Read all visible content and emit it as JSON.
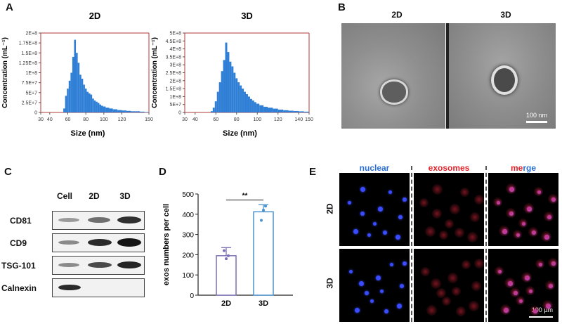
{
  "panels": {
    "A": "A",
    "B": "B",
    "C": "C",
    "D": "D",
    "E": "E"
  },
  "panelA": {
    "charts": [
      {
        "title": "2D",
        "ylabel": "Concentration (mL⁻¹)",
        "xlabel": "Size (nm)",
        "xticks": [
          "30",
          "40",
          "60",
          "80",
          "100",
          "120",
          "150"
        ],
        "yticks": [
          "0",
          "2.5E+7",
          "5E+7",
          "7.5E+7",
          "1E+8",
          "1.25E+8",
          "1.5E+8",
          "1.75E+8",
          "2E+8"
        ]
      },
      {
        "title": "3D",
        "ylabel": "Concentration (mL⁻¹)",
        "xlabel": "Size (nm)",
        "xticks": [
          "30",
          "40",
          "60",
          "80",
          "100",
          "120",
          "140",
          "150"
        ],
        "yticks": [
          "0",
          "5E+7",
          "1E+8",
          "1.5E+8",
          "2E+8",
          "2.5E+8",
          "3E+8",
          "3.5E+8",
          "4E+8",
          "4.5E+8",
          "5E+8"
        ]
      }
    ]
  },
  "chart_data": [
    {
      "type": "bar",
      "title": "2D",
      "xlabel": "Size (nm)",
      "ylabel": "Concentration (mL⁻¹)",
      "xlim": [
        30,
        150
      ],
      "ylim": [
        0,
        200000000
      ],
      "x": [
        55,
        57,
        59,
        61,
        63,
        65,
        67,
        69,
        71,
        73,
        75,
        77,
        79,
        81,
        83,
        85,
        87,
        89,
        91,
        93,
        95,
        97,
        99,
        102,
        106,
        110,
        115,
        120,
        125,
        130,
        135,
        140,
        145
      ],
      "values": [
        10000000,
        42000000,
        60000000,
        80000000,
        100000000,
        140000000,
        183000000,
        150000000,
        125000000,
        95000000,
        85000000,
        70000000,
        60000000,
        52000000,
        48000000,
        45000000,
        35000000,
        30000000,
        27000000,
        24000000,
        20000000,
        17000000,
        15000000,
        12000000,
        10000000,
        8000000,
        6000000,
        5000000,
        4000000,
        3000000,
        3000000,
        2000000,
        1000000
      ]
    },
    {
      "type": "bar",
      "title": "3D",
      "xlabel": "Size (nm)",
      "ylabel": "Concentration (mL⁻¹)",
      "xlim": [
        30,
        150
      ],
      "ylim": [
        0,
        500000000
      ],
      "x": [
        55,
        57,
        59,
        61,
        63,
        65,
        67,
        69,
        71,
        73,
        75,
        77,
        79,
        81,
        83,
        85,
        87,
        89,
        91,
        93,
        95,
        97,
        99,
        102,
        106,
        110,
        115,
        120,
        125,
        130,
        135,
        140,
        145
      ],
      "values": [
        8000000,
        30000000,
        70000000,
        130000000,
        190000000,
        260000000,
        330000000,
        440000000,
        380000000,
        320000000,
        290000000,
        250000000,
        215000000,
        190000000,
        170000000,
        150000000,
        130000000,
        115000000,
        100000000,
        85000000,
        75000000,
        65000000,
        55000000,
        45000000,
        36000000,
        30000000,
        24000000,
        18000000,
        14000000,
        11000000,
        9000000,
        7000000,
        5000000
      ]
    },
    {
      "type": "bar",
      "title": "",
      "xlabel": "",
      "ylabel": "exos numbers per cell",
      "categories": [
        "2D",
        "3D"
      ],
      "values": [
        195,
        412
      ],
      "errors": [
        40,
        35
      ],
      "points": [
        [
          220,
          180,
          195
        ],
        [
          370,
          420,
          440
        ]
      ],
      "ylim": [
        0,
        500
      ],
      "yticks": [
        "0",
        "100",
        "200",
        "300",
        "400",
        "500"
      ],
      "significance": "**"
    }
  ],
  "panelB": {
    "labels": [
      "2D",
      "3D"
    ],
    "scale": "100 nm"
  },
  "panelC": {
    "lanes": [
      "Cell",
      "2D",
      "3D"
    ],
    "rows": [
      "CD81",
      "CD9",
      "TSG-101",
      "Calnexin"
    ]
  },
  "panelE": {
    "columns": [
      "nuclear",
      "exosomes",
      "merge"
    ],
    "rows": [
      "2D",
      "3D"
    ],
    "scale": "100 µm",
    "colors": {
      "nuclear": "#2a6fd6",
      "exosomes": "#e3222a",
      "merge_me": "#e3222a",
      "merge_rge": "#2a6fd6"
    }
  }
}
